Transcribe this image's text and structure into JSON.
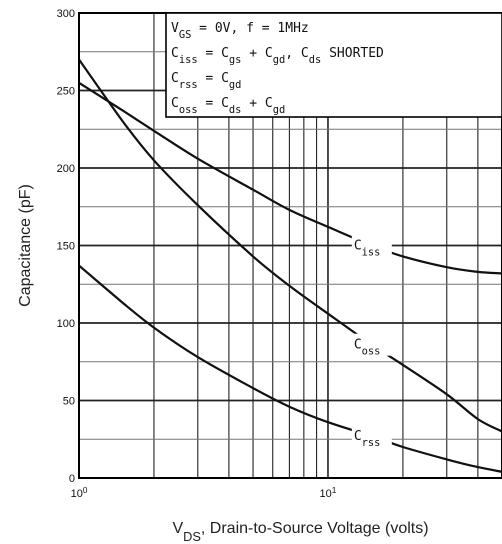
{
  "chart_data": {
    "type": "line",
    "title": "",
    "xlabel": "V_DS, Drain-to-Source Voltage (volts)",
    "xlabel_parts": {
      "main": "V",
      "sub": "DS",
      "rest": ", Drain-to-Source Voltage (volts)"
    },
    "ylabel": "Capacitance (pF)",
    "xscale": "log",
    "xlim": [
      1,
      50
    ],
    "ylim": [
      0,
      300
    ],
    "grid": true,
    "x_ticks": [
      {
        "value": 1,
        "base": "10",
        "exp": "0"
      },
      {
        "value": 10,
        "base": "10",
        "exp": "1"
      }
    ],
    "y_ticks": [
      "0",
      "50",
      "100",
      "150",
      "200",
      "250",
      "300"
    ],
    "legend": {
      "placement": "top-right",
      "lines": [
        "V_GS = 0V,  f = 1MHz",
        "C_iss = C_gs + C_gd,  C_ds SHORTED",
        "C_rss = C_gd",
        "C_oss = C_ds + C_gd"
      ]
    },
    "series": [
      {
        "name": "C_iss",
        "x": [
          1,
          1.5,
          2,
          3,
          5,
          7,
          10,
          15,
          20,
          30,
          40,
          50
        ],
        "y": [
          255,
          237,
          224,
          206,
          186,
          173,
          162,
          150,
          143,
          136,
          133,
          132
        ]
      },
      {
        "name": "C_oss",
        "x": [
          1,
          1.5,
          2,
          3,
          5,
          7,
          10,
          15,
          20,
          30,
          40,
          50
        ],
        "y": [
          270,
          230,
          205,
          176,
          143,
          124,
          106,
          86,
          73,
          54,
          38,
          30
        ]
      },
      {
        "name": "C_rss",
        "x": [
          1,
          1.5,
          2,
          3,
          5,
          7,
          10,
          15,
          20,
          30,
          40,
          50
        ],
        "y": [
          137,
          113,
          97,
          78,
          58,
          46,
          36,
          27,
          20,
          12,
          7,
          4
        ]
      }
    ],
    "curve_labels": [
      {
        "series": "C_iss",
        "main": "C",
        "sub": "iss"
      },
      {
        "series": "C_oss",
        "main": "C",
        "sub": "oss"
      },
      {
        "series": "C_rss",
        "main": "C",
        "sub": "rss"
      }
    ]
  }
}
